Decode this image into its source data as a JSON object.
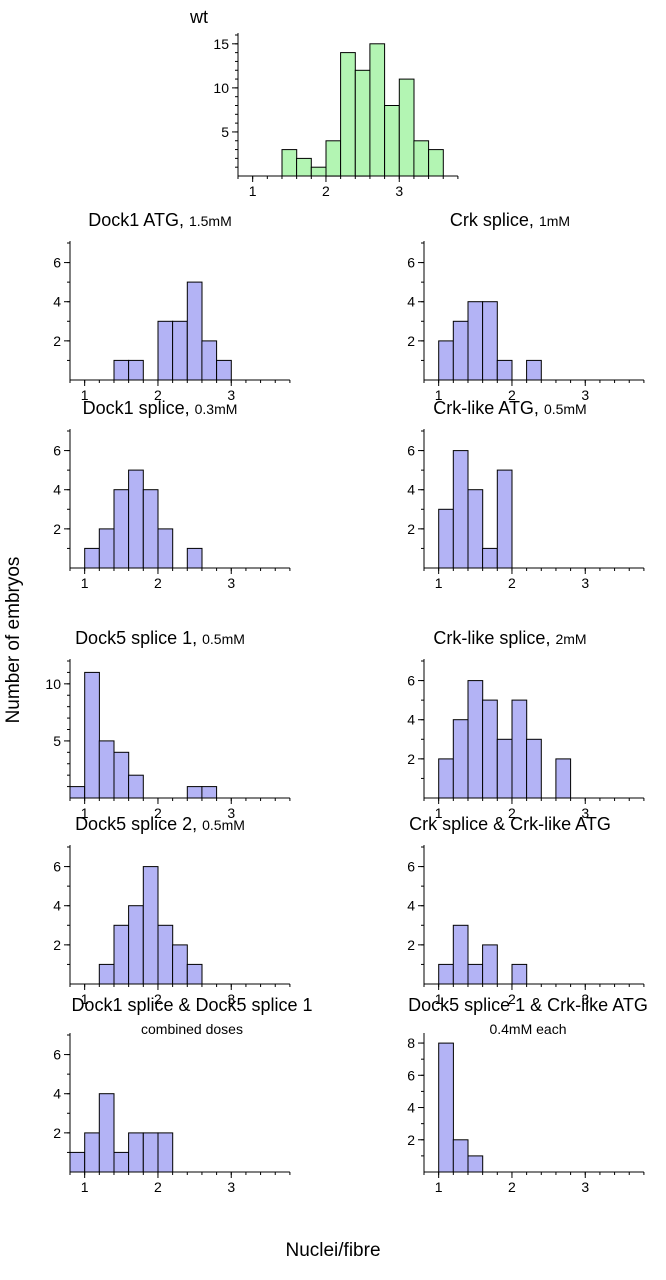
{
  "figure": {
    "y_axis_label": "Number of embryos",
    "x_axis_label": "Nuclei/fibre"
  },
  "colors": {
    "wt_fill": "#b3f5b3",
    "treated_fill": "#b3b3f5",
    "stroke": "#000000"
  },
  "chart_data": [
    {
      "type": "bar",
      "title": "wt",
      "subtitle": "",
      "bin_width": 0.2,
      "bins": [
        {
          "x": 1.4,
          "value": 3
        },
        {
          "x": 1.6,
          "value": 2
        },
        {
          "x": 1.8,
          "value": 1
        },
        {
          "x": 2.0,
          "value": 4
        },
        {
          "x": 2.2,
          "value": 14
        },
        {
          "x": 2.4,
          "value": 12
        },
        {
          "x": 2.6,
          "value": 15
        },
        {
          "x": 2.8,
          "value": 8
        },
        {
          "x": 3.0,
          "value": 11
        },
        {
          "x": 3.2,
          "value": 4
        },
        {
          "x": 3.4,
          "value": 3
        }
      ],
      "x_ticks": [
        "1",
        "2",
        "3"
      ],
      "y_ticks": [
        "5",
        "10",
        "15"
      ],
      "xlim": [
        0.8,
        3.8
      ],
      "ylim": [
        0,
        16
      ]
    },
    {
      "type": "bar",
      "title": "Dock1 ATG,",
      "subtitle": "1.5mM",
      "bin_width": 0.2,
      "bins": [
        {
          "x": 1.4,
          "value": 1
        },
        {
          "x": 1.6,
          "value": 1
        },
        {
          "x": 2.0,
          "value": 3
        },
        {
          "x": 2.2,
          "value": 3
        },
        {
          "x": 2.4,
          "value": 5
        },
        {
          "x": 2.6,
          "value": 2
        },
        {
          "x": 2.8,
          "value": 1
        }
      ],
      "x_ticks": [
        "1",
        "2",
        "3"
      ],
      "y_ticks": [
        "2",
        "4",
        "6"
      ],
      "xlim": [
        0.8,
        3.8
      ],
      "ylim": [
        0,
        7
      ]
    },
    {
      "type": "bar",
      "title": "Crk splice,",
      "subtitle": "1mM",
      "bin_width": 0.2,
      "bins": [
        {
          "x": 1.0,
          "value": 2
        },
        {
          "x": 1.2,
          "value": 3
        },
        {
          "x": 1.4,
          "value": 4
        },
        {
          "x": 1.6,
          "value": 4
        },
        {
          "x": 1.8,
          "value": 1
        },
        {
          "x": 2.2,
          "value": 1
        }
      ],
      "x_ticks": [
        "1",
        "2",
        "3"
      ],
      "y_ticks": [
        "2",
        "4",
        "6"
      ],
      "xlim": [
        0.8,
        3.8
      ],
      "ylim": [
        0,
        7
      ]
    },
    {
      "type": "bar",
      "title": "Dock1 splice,",
      "subtitle": "0.3mM",
      "bin_width": 0.2,
      "bins": [
        {
          "x": 1.0,
          "value": 1
        },
        {
          "x": 1.2,
          "value": 2
        },
        {
          "x": 1.4,
          "value": 4
        },
        {
          "x": 1.6,
          "value": 5
        },
        {
          "x": 1.8,
          "value": 4
        },
        {
          "x": 2.0,
          "value": 2
        },
        {
          "x": 2.4,
          "value": 1
        }
      ],
      "x_ticks": [
        "1",
        "2",
        "3"
      ],
      "y_ticks": [
        "2",
        "4",
        "6"
      ],
      "xlim": [
        0.8,
        3.8
      ],
      "ylim": [
        0,
        7
      ]
    },
    {
      "type": "bar",
      "title": "Crk-like ATG,",
      "subtitle": "0.5mM",
      "bin_width": 0.2,
      "bins": [
        {
          "x": 1.0,
          "value": 3
        },
        {
          "x": 1.2,
          "value": 6
        },
        {
          "x": 1.4,
          "value": 4
        },
        {
          "x": 1.6,
          "value": 1
        },
        {
          "x": 1.8,
          "value": 5
        }
      ],
      "x_ticks": [
        "1",
        "2",
        "3"
      ],
      "y_ticks": [
        "2",
        "4",
        "6"
      ],
      "xlim": [
        0.8,
        3.8
      ],
      "ylim": [
        0,
        7
      ]
    },
    {
      "type": "bar",
      "title": "Dock5 splice 1,",
      "subtitle": "0.5mM",
      "bin_width": 0.2,
      "bins": [
        {
          "x": 0.8,
          "value": 1
        },
        {
          "x": 1.0,
          "value": 11
        },
        {
          "x": 1.2,
          "value": 5
        },
        {
          "x": 1.4,
          "value": 4
        },
        {
          "x": 1.6,
          "value": 2
        },
        {
          "x": 2.4,
          "value": 1
        },
        {
          "x": 2.6,
          "value": 1
        }
      ],
      "x_ticks": [
        "1",
        "2",
        "3"
      ],
      "y_ticks": [
        "5",
        "10"
      ],
      "xlim": [
        0.8,
        3.8
      ],
      "ylim": [
        0,
        12
      ]
    },
    {
      "type": "bar",
      "title": "Crk-like splice,",
      "subtitle": "2mM",
      "bin_width": 0.2,
      "bins": [
        {
          "x": 1.0,
          "value": 2
        },
        {
          "x": 1.2,
          "value": 4
        },
        {
          "x": 1.4,
          "value": 6
        },
        {
          "x": 1.6,
          "value": 5
        },
        {
          "x": 1.8,
          "value": 3
        },
        {
          "x": 2.0,
          "value": 5
        },
        {
          "x": 2.2,
          "value": 3
        },
        {
          "x": 2.6,
          "value": 2
        }
      ],
      "x_ticks": [
        "1",
        "2",
        "3"
      ],
      "y_ticks": [
        "2",
        "4",
        "6"
      ],
      "xlim": [
        0.8,
        3.8
      ],
      "ylim": [
        0,
        7
      ]
    },
    {
      "type": "bar",
      "title": "Dock5 splice 2,",
      "subtitle": "0.5mM",
      "bin_width": 0.2,
      "bins": [
        {
          "x": 1.2,
          "value": 1
        },
        {
          "x": 1.4,
          "value": 3
        },
        {
          "x": 1.6,
          "value": 4
        },
        {
          "x": 1.8,
          "value": 6
        },
        {
          "x": 2.0,
          "value": 3
        },
        {
          "x": 2.2,
          "value": 2
        },
        {
          "x": 2.4,
          "value": 1
        }
      ],
      "x_ticks": [
        "1",
        "2",
        "3"
      ],
      "y_ticks": [
        "2",
        "4",
        "6"
      ],
      "xlim": [
        0.8,
        3.8
      ],
      "ylim": [
        0,
        7
      ]
    },
    {
      "type": "bar",
      "title": "Crk splice & Crk-like ATG",
      "subtitle": "",
      "bin_width": 0.2,
      "bins": [
        {
          "x": 1.0,
          "value": 1
        },
        {
          "x": 1.2,
          "value": 3
        },
        {
          "x": 1.4,
          "value": 1
        },
        {
          "x": 1.6,
          "value": 2
        },
        {
          "x": 2.0,
          "value": 1
        }
      ],
      "x_ticks": [
        "1",
        "2",
        "3"
      ],
      "y_ticks": [
        "2",
        "4",
        "6"
      ],
      "xlim": [
        0.8,
        3.8
      ],
      "ylim": [
        0,
        7
      ]
    },
    {
      "type": "bar",
      "title": "Dock1 splice & Dock5 splice 1",
      "subtitle": "combined doses",
      "bin_width": 0.2,
      "bins": [
        {
          "x": 0.8,
          "value": 1
        },
        {
          "x": 1.0,
          "value": 2
        },
        {
          "x": 1.2,
          "value": 4
        },
        {
          "x": 1.4,
          "value": 1
        },
        {
          "x": 1.6,
          "value": 2
        },
        {
          "x": 1.8,
          "value": 2
        },
        {
          "x": 2.0,
          "value": 2
        }
      ],
      "x_ticks": [
        "1",
        "2",
        "3"
      ],
      "y_ticks": [
        "2",
        "4",
        "6"
      ],
      "xlim": [
        0.8,
        3.8
      ],
      "ylim": [
        0,
        7
      ]
    },
    {
      "type": "bar",
      "title": "Dock5 splice 1 & Crk-like ATG",
      "subtitle": "0.4mM each",
      "bin_width": 0.2,
      "bins": [
        {
          "x": 1.0,
          "value": 8
        },
        {
          "x": 1.2,
          "value": 2
        },
        {
          "x": 1.4,
          "value": 1
        }
      ],
      "x_ticks": [
        "1",
        "2",
        "3"
      ],
      "y_ticks": [
        "2",
        "4",
        "6",
        "8"
      ],
      "xlim": [
        0.8,
        3.8
      ],
      "ylim": [
        0,
        8.5
      ]
    }
  ]
}
